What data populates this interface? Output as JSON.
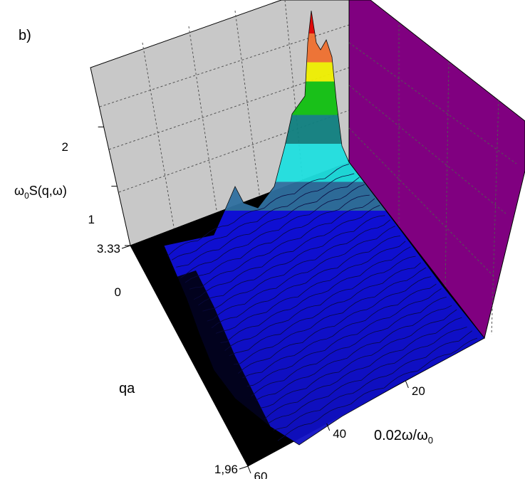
{
  "chart_data": {
    "type": "surface3d",
    "panel_label": "b)",
    "zlabel": [
      "ω",
      "0",
      "S(q,ω)"
    ],
    "zlim": [
      0,
      3
    ],
    "zticks": [
      0,
      1,
      2
    ],
    "ylabel": "qa",
    "ylim": [
      3.33,
      1.96
    ],
    "yticks": [
      3.33,
      {
        "value": 1.96,
        "label": "1,96"
      }
    ],
    "xlabel": [
      "0.02ω/ω",
      "0"
    ],
    "xlim": [
      0,
      60
    ],
    "xticks": [
      20,
      40,
      60
    ]
  }
}
